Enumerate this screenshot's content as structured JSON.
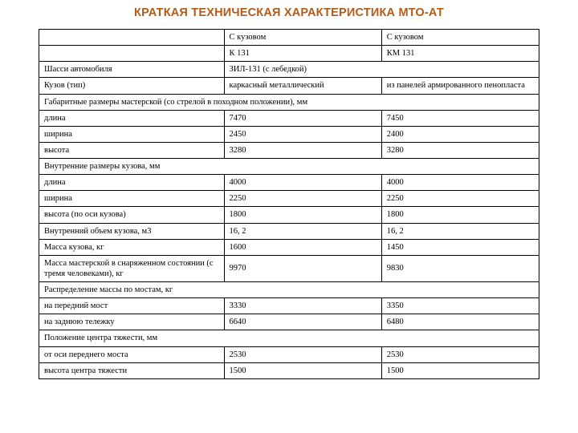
{
  "title": "КРАТКАЯ ТЕХНИЧЕСКАЯ ХАРАКТЕРИСТИКА МТО-АТ",
  "hdr": {
    "blank1": "",
    "c1a": "С кузовом",
    "c2a": "С кузовом",
    "blank2": "",
    "c1b": "К 131",
    "c2b": "КМ 131"
  },
  "r1": {
    "a": "Шасси автомобиля",
    "b": "ЗИЛ-131 (с лебедкой)"
  },
  "r2": {
    "a": "Кузов (тип)",
    "b": "каркасный металлический",
    "c": "из панелей армированного пенопласта"
  },
  "sec1": "Габаритные размеры мастерской (со стрелой в походном положении), мм",
  "r3": {
    "a": "длина",
    "b": "7470",
    "c": "7450"
  },
  "r4": {
    "a": "ширина",
    "b": "2450",
    "c": "2400"
  },
  "r5": {
    "a": "высота",
    "b": "3280",
    "c": "3280"
  },
  "sec2": "Внутренние размеры кузова, мм",
  "r6": {
    "a": "длина",
    "b": "4000",
    "c": "4000"
  },
  "r7": {
    "a": "ширина",
    "b": "2250",
    "c": "2250"
  },
  "r8": {
    "a": "высота (по оси кузова)",
    "b": "1800",
    "c": "1800"
  },
  "r9": {
    "a": "Внутренний объем кузова, м3",
    "b": "16, 2",
    "c": "16, 2"
  },
  "r10": {
    "a": "Масса кузова, кг",
    "b": "1600",
    "c": "1450"
  },
  "r11": {
    "a": "Масса мастерской в снаряженном состоянии (с тремя человеками), кг",
    "b": "9970",
    "c": "9830"
  },
  "sec3": "Распределение массы по мостам, кг",
  "r12": {
    "a": "на передний мост",
    "b": "3330",
    "c": "3350"
  },
  "r13": {
    "a": "на заднюю тележку",
    "b": "6640",
    "c": "6480"
  },
  "sec4": "Положение центра тяжести, мм",
  "r14": {
    "a": "от оси переднего моста",
    "b": "2530",
    "c": "2530"
  },
  "r15": {
    "a": "высота центра тяжести",
    "b": "1500",
    "c": "1500"
  },
  "style": {
    "title_color": "#b35a18",
    "border_color": "#000000",
    "background": "#ffffff",
    "title_fontsize_pt": 12,
    "cell_fontsize_pt": 8,
    "font_family_title": "Verdana",
    "font_family_body": "Times New Roman",
    "columns": [
      "37%",
      "31.5%",
      "31.5%"
    ]
  }
}
